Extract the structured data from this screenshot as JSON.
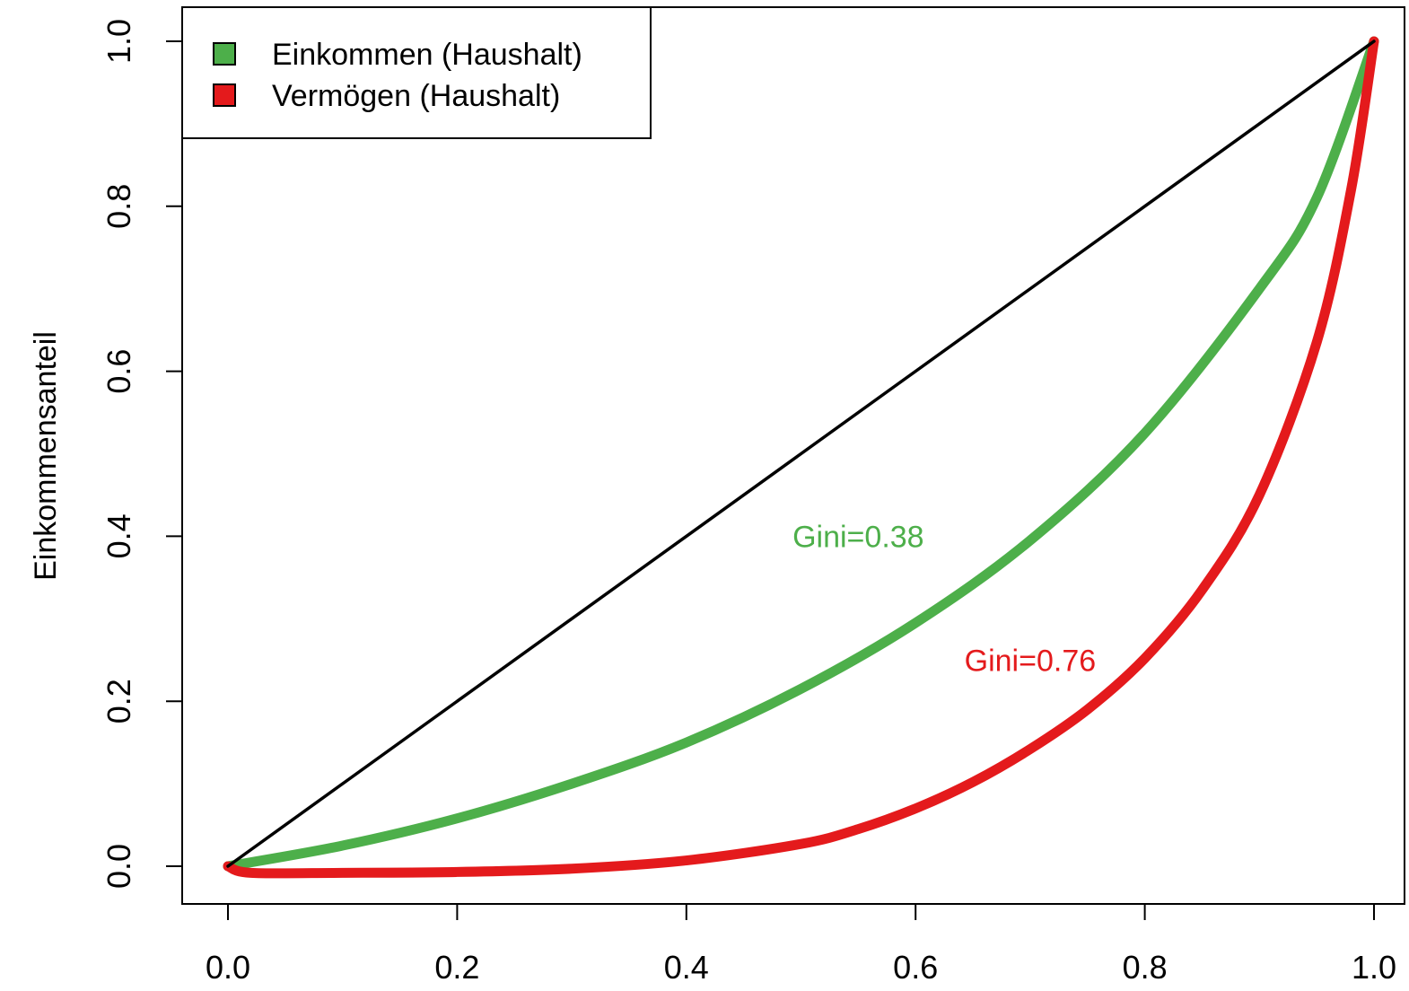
{
  "chart_data": {
    "type": "line",
    "title": "",
    "xlabel": "",
    "ylabel": "Einkommensanteil",
    "xlim": [
      0,
      1
    ],
    "ylim": [
      -0.04,
      1.04
    ],
    "grid": false,
    "x_ticks": [
      "0.0",
      "0.2",
      "0.4",
      "0.6",
      "0.8",
      "1.0"
    ],
    "y_ticks": [
      "0.0",
      "0.2",
      "0.4",
      "0.6",
      "0.8",
      "1.0"
    ],
    "legend": {
      "position": "top-left",
      "entries": [
        {
          "label": "Einkommen (Haushalt)",
          "color": "#4daf4a"
        },
        {
          "label": "Vermögen (Haushalt)",
          "color": "#e41a1c"
        }
      ]
    },
    "series": [
      {
        "name": "Einkommen (Haushalt)",
        "color": "#4daf4a",
        "x": [
          0,
          0.1,
          0.2,
          0.3,
          0.4,
          0.5,
          0.6,
          0.7,
          0.8,
          0.9,
          0.95,
          1.0
        ],
        "y": [
          0,
          0.025,
          0.058,
          0.1,
          0.15,
          0.215,
          0.295,
          0.395,
          0.525,
          0.7,
          0.81,
          1.0
        ]
      },
      {
        "name": "Vermögen (Haushalt)",
        "color": "#e41a1c",
        "x": [
          0,
          0.02,
          0.1,
          0.2,
          0.3,
          0.4,
          0.5,
          0.55,
          0.6,
          0.65,
          0.7,
          0.75,
          0.8,
          0.85,
          0.9,
          0.95,
          0.98,
          1.0
        ],
        "y": [
          0,
          -0.008,
          -0.008,
          -0.007,
          -0.003,
          0.007,
          0.027,
          0.045,
          0.07,
          0.102,
          0.142,
          0.19,
          0.252,
          0.335,
          0.45,
          0.635,
          0.82,
          1.0
        ]
      },
      {
        "name": "",
        "color": "#000000",
        "x": [
          0,
          1
        ],
        "y": [
          0,
          1
        ]
      }
    ],
    "annotations": [
      {
        "text": "Gini=0.38",
        "x": 0.55,
        "y": 0.4,
        "color": "#4daf4a"
      },
      {
        "text": "Gini=0.76",
        "x": 0.7,
        "y": 0.25,
        "color": "#e41a1c"
      }
    ]
  }
}
